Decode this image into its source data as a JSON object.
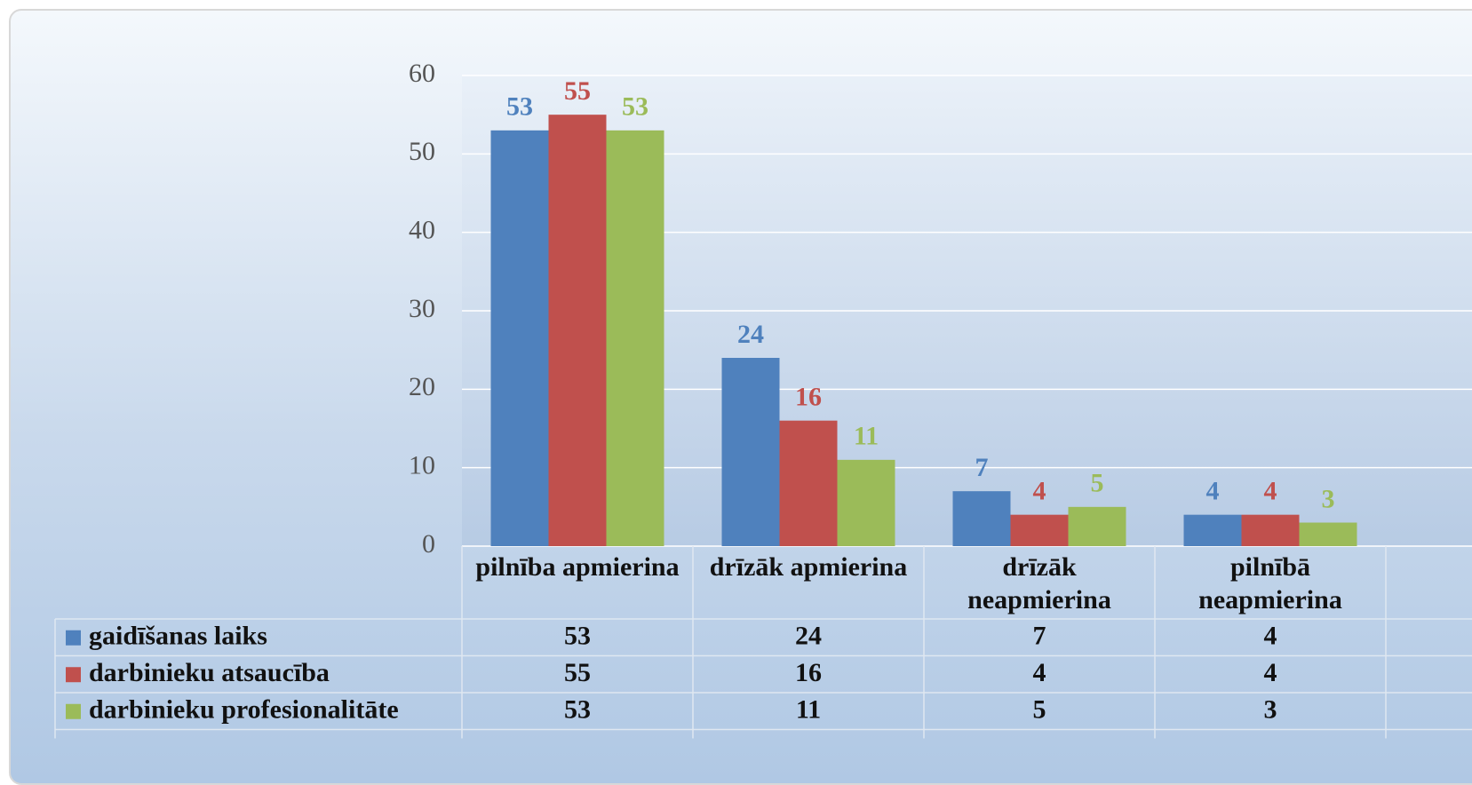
{
  "chart_data": {
    "type": "bar",
    "categories": [
      "pilnība apmierina",
      "drīzāk apmierina",
      "drīzāk neapmierina",
      "pilnībā neapmierina"
    ],
    "series": [
      {
        "name": "gaidīšanas laiks",
        "color": "#4f81bd",
        "values": [
          53,
          24,
          7,
          4
        ]
      },
      {
        "name": "darbinieku atsaucība",
        "color": "#c0504d",
        "values": [
          55,
          16,
          4,
          4
        ]
      },
      {
        "name": "darbinieku profesionalitāte",
        "color": "#9bbb59",
        "values": [
          53,
          11,
          5,
          3
        ]
      }
    ],
    "ylim": [
      0,
      60
    ],
    "yticks": [
      0,
      10,
      20,
      30,
      40,
      50,
      60
    ],
    "grid": true,
    "data_table": true
  }
}
